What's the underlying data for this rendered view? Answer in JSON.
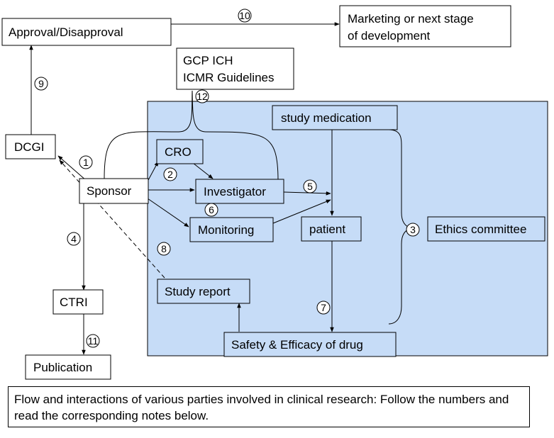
{
  "nodes": {
    "approval": "Approval/Disapproval",
    "marketing_line1": "Marketing or next stage",
    "marketing_line2": "of development",
    "gcp_line1": "GCP ICH",
    "gcp_line2": "ICMR Guidelines",
    "study_medication": "study medication",
    "dcgi": "DCGI",
    "cro": "CRO",
    "sponsor": "Sponsor",
    "investigator": "Investigator",
    "monitoring": "Monitoring",
    "patient": "patient",
    "ethics": "Ethics committee",
    "ctri": "CTRI",
    "study_report": "Study report",
    "safety": "Safety & Efficacy of drug",
    "publication": "Publication"
  },
  "step_numbers": {
    "n1": "1",
    "n2": "2",
    "n3": "3",
    "n4": "4",
    "n5": "5",
    "n6": "6",
    "n7": "7",
    "n8": "8",
    "n9": "9",
    "n10": "10",
    "n11": "11",
    "n12": "12"
  },
  "caption": "Flow and interactions of various parties involved in clinical research: Follow the numbers and read the corresponding notes below.",
  "colors": {
    "panel_fill": "#c6dcf7",
    "panel_stroke": "#000000"
  }
}
